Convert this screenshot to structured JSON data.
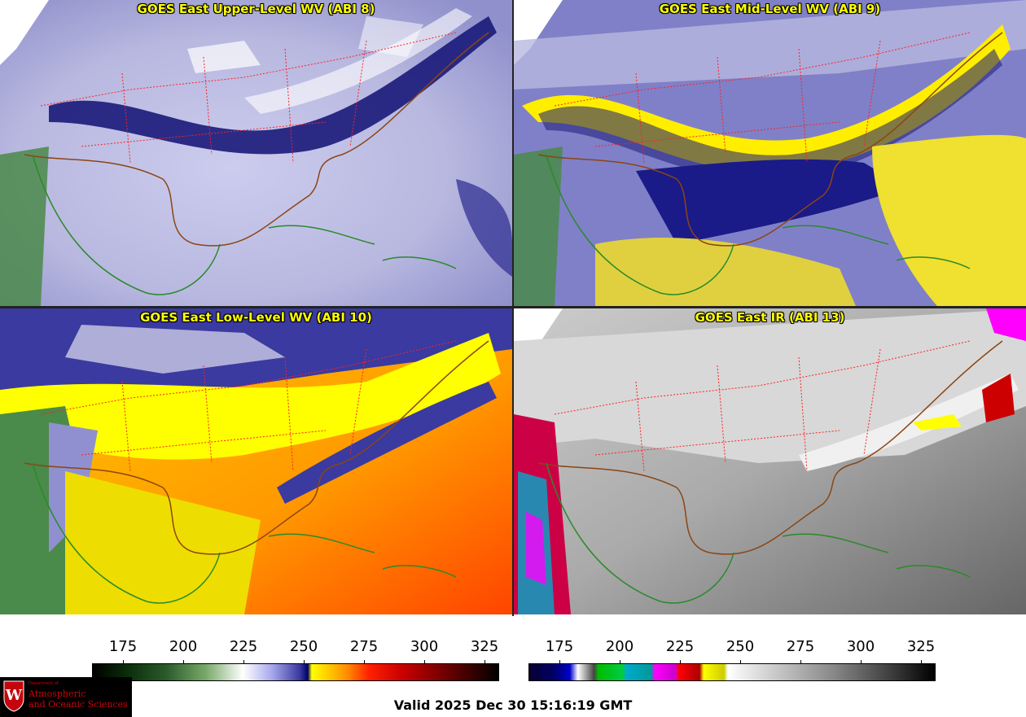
{
  "panels": [
    {
      "title": "GOES East Upper-Level WV (ABI 8)",
      "colorscale": "wv"
    },
    {
      "title": "GOES East Mid-Level WV (ABI 9)",
      "colorscale": "wv"
    },
    {
      "title": "GOES East Low-Level WV (ABI 10)",
      "colorscale": "wv"
    },
    {
      "title": "GOES East IR (ABI 13)",
      "colorscale": "ir"
    }
  ],
  "colorbars": {
    "wv": {
      "ticks": [
        "175",
        "200",
        "225",
        "250",
        "275",
        "300",
        "325"
      ]
    },
    "ir": {
      "ticks": [
        "175",
        "200",
        "225",
        "250",
        "275",
        "300",
        "325"
      ]
    }
  },
  "footer": {
    "valid_time": "Valid 2025 Dec 30 15:16:19 GMT"
  },
  "logo": {
    "department": "Department of",
    "line1": "Atmospheric",
    "line2": "and Oceanic Sciences",
    "seal_letter": "W"
  },
  "map_colors": {
    "country_border": "#2a8a2a",
    "state_border": "#ff2020",
    "coastline": "#8b4513"
  }
}
